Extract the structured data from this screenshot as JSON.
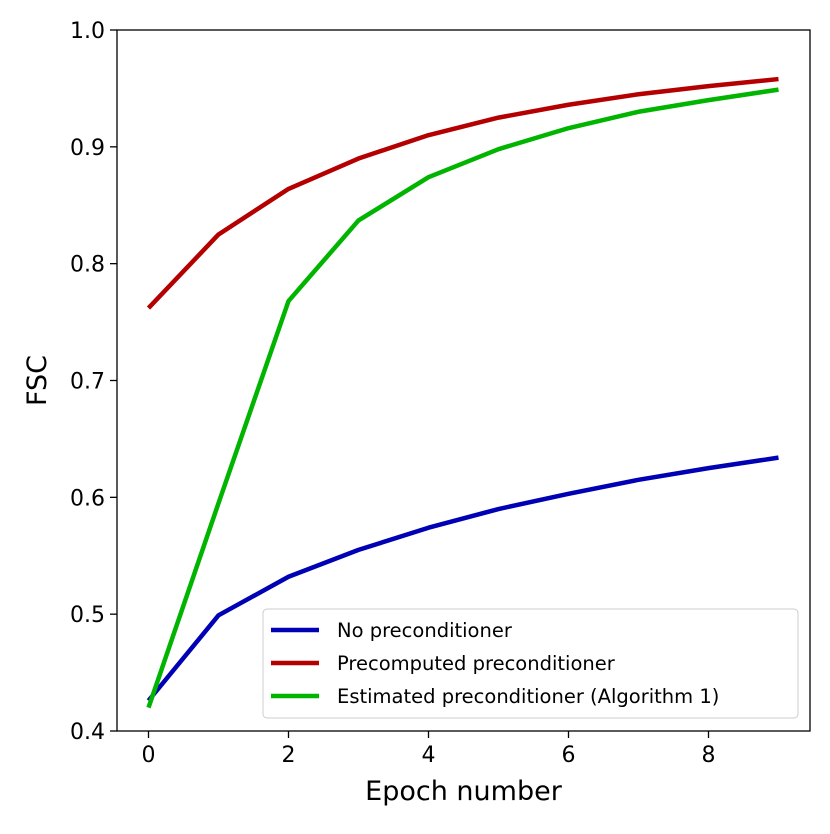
{
  "chart_data": {
    "type": "line",
    "title": "",
    "xlabel": "Epoch number",
    "ylabel": "FSC",
    "xlim": [
      -0.45,
      9.45
    ],
    "ylim": [
      0.4,
      1.0
    ],
    "xticks": [
      0,
      2,
      4,
      6,
      8
    ],
    "yticks": [
      0.4,
      0.5,
      0.6,
      0.7,
      0.8,
      0.9,
      1.0
    ],
    "xtick_labels": [
      "0",
      "2",
      "4",
      "6",
      "8"
    ],
    "ytick_labels": [
      "0.4",
      "0.5",
      "0.6",
      "0.7",
      "0.8",
      "0.9",
      "1.0"
    ],
    "grid": false,
    "legend_position": "lower-right",
    "x": [
      0,
      1,
      2,
      3,
      4,
      5,
      6,
      7,
      8,
      9
    ],
    "series": [
      {
        "name": "No preconditioner",
        "color": "#0000b4",
        "values": [
          0.426,
          0.499,
          0.532,
          0.555,
          0.574,
          0.59,
          0.603,
          0.615,
          0.625,
          0.634
        ]
      },
      {
        "name": "Precomputed preconditioner",
        "color": "#b40000",
        "values": [
          0.762,
          0.825,
          0.864,
          0.89,
          0.91,
          0.925,
          0.936,
          0.945,
          0.952,
          0.958
        ]
      },
      {
        "name": "Estimated preconditioner (Algorithm 1)",
        "color": "#00b400",
        "values": [
          0.42,
          0.595,
          0.768,
          0.837,
          0.874,
          0.898,
          0.916,
          0.93,
          0.94,
          0.949
        ]
      }
    ]
  }
}
